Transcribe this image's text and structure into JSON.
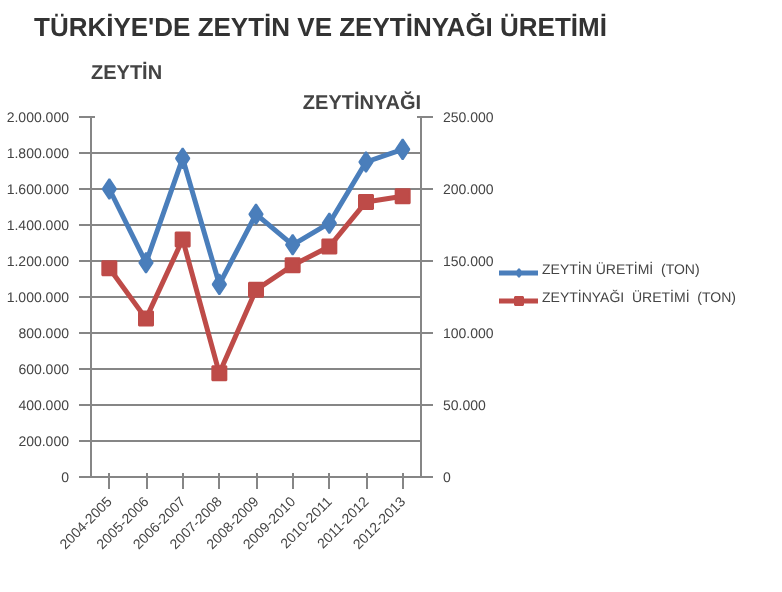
{
  "chart_data": {
    "type": "line",
    "title": "TÜRKİYE'DE ZEYTİN VE ZEYTİNYAĞI ÜRETİMİ",
    "ylabel": "ZEYTİN",
    "y2label": "ZEYTİNYAĞI",
    "categories": [
      "2004-2005",
      "2005-2006",
      "2006-2007",
      "2007-2008",
      "2008-2009",
      "2009-2010",
      "2010-2011",
      "2011-2012",
      "2012-2013"
    ],
    "series": [
      {
        "name": "ZEYTİN ÜRETİMİ  (TON)",
        "color": "#4a7ebb",
        "marker": "diamond",
        "values": [
          1600000,
          1190000,
          1770000,
          1070000,
          1460000,
          1290000,
          1410000,
          1750000,
          1820000
        ]
      },
      {
        "name": "ZEYTİNYAĞI  ÜRETİMİ  (TON)",
        "color": "#be4b48",
        "marker": "square",
        "axis": "y2",
        "values": [
          145000,
          110000,
          165000,
          72000,
          130000,
          147000,
          160000,
          191000,
          195000
        ]
      }
    ],
    "ylim": [
      0,
      2000000
    ],
    "yticks": [
      {
        "value": 0,
        "label": "0"
      },
      {
        "value": 200000,
        "label": "200.000"
      },
      {
        "value": 400000,
        "label": "400.000"
      },
      {
        "value": 600000,
        "label": "600.000"
      },
      {
        "value": 800000,
        "label": "800.000"
      },
      {
        "value": 1000000,
        "label": "1.000.000"
      },
      {
        "value": 1200000,
        "label": "1.200.000"
      },
      {
        "value": 1400000,
        "label": "1.400.000"
      },
      {
        "value": 1600000,
        "label": "1.600.000"
      },
      {
        "value": 1800000,
        "label": "1.800.000"
      },
      {
        "value": 2000000,
        "label": "2.000.000"
      }
    ],
    "y2lim": [
      0,
      250000
    ],
    "y2ticks": [
      {
        "value": 0,
        "label": "0"
      },
      {
        "value": 50000,
        "label": "50.000"
      },
      {
        "value": 100000,
        "label": "100.000"
      },
      {
        "value": 150000,
        "label": "150.000"
      },
      {
        "value": 200000,
        "label": "200.000"
      },
      {
        "value": 250000,
        "label": "250.000"
      }
    ],
    "grid": "y",
    "legend": "right",
    "line_style": "solid"
  }
}
